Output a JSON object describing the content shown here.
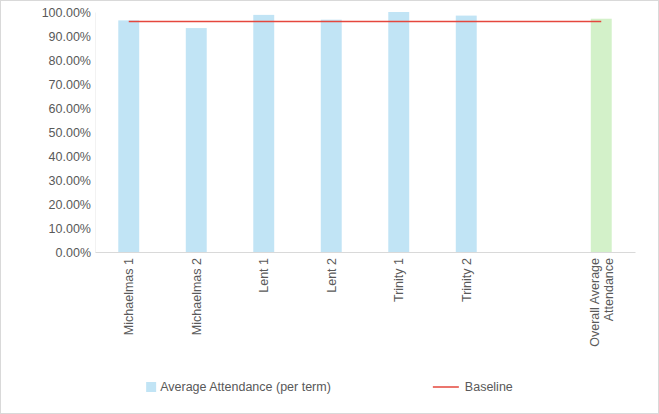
{
  "chart_data": {
    "type": "bar",
    "categories": [
      "Michaelmas 1",
      "Michaelmas 2",
      "Lent 1",
      "Lent 2",
      "Trinity 1",
      "Trinity 2",
      null,
      "Overall Average Attendance"
    ],
    "series": [
      {
        "name": "Average Attendance (per term)",
        "type": "bar",
        "color": "#c1e4f5",
        "colors": [
          "#c1e4f5",
          "#c1e4f5",
          "#c1e4f5",
          "#c1e4f5",
          "#c1e4f5",
          "#c1e4f5",
          "#c1e4f5",
          "#d3f1c9"
        ],
        "values": [
          96.5,
          93.3,
          98.8,
          96.8,
          100,
          98.5,
          null,
          97.2
        ]
      },
      {
        "name": "Baseline",
        "type": "line",
        "color": "#e5473d",
        "line_style": "solid",
        "values": [
          96,
          96,
          96,
          96,
          96,
          96,
          96,
          96
        ]
      }
    ],
    "ylim": [
      0,
      100
    ],
    "yticks": [
      {
        "value": 0,
        "label": "0.00%"
      },
      {
        "value": 10,
        "label": "10.00%"
      },
      {
        "value": 20,
        "label": "20.00%"
      },
      {
        "value": 30,
        "label": "30.00%"
      },
      {
        "value": 40,
        "label": "40.00%"
      },
      {
        "value": 50,
        "label": "50.00%"
      },
      {
        "value": 60,
        "label": "60.00%"
      },
      {
        "value": 70,
        "label": "70.00%"
      },
      {
        "value": 80,
        "label": "80.00%"
      },
      {
        "value": 90,
        "label": "90.00%"
      },
      {
        "value": 100,
        "label": "100.00%"
      }
    ],
    "grid": false,
    "legend": "bottom"
  }
}
